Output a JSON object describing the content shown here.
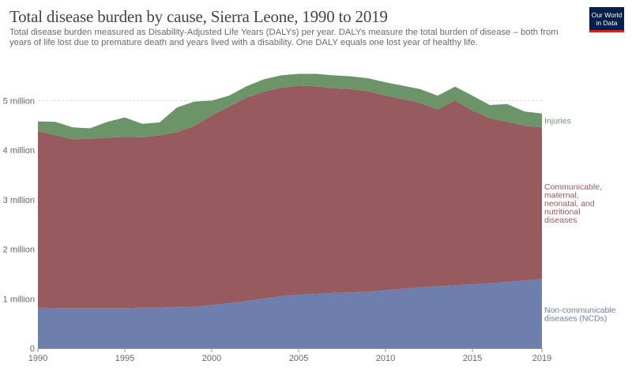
{
  "header": {
    "title": "Total disease burden by cause, Sierra Leone, 1990 to 2019",
    "subtitle": "Total disease burden measured as Disability-Adjusted Life Years (DALYs) per year. DALYs measure the total burden of disease – both from years of life lost due to premature death and years lived with a disability. One DALY equals one lost year of healthy life."
  },
  "logo": {
    "line1": "Our World",
    "line2": "in Data",
    "bg": "#002147",
    "accent": "#ce261e"
  },
  "chart_data": {
    "type": "area",
    "stacked": true,
    "title": "Total disease burden by cause, Sierra Leone, 1990 to 2019",
    "x": [
      1990,
      1991,
      1992,
      1993,
      1994,
      1995,
      1996,
      1997,
      1998,
      1999,
      2000,
      2001,
      2002,
      2003,
      2004,
      2005,
      2006,
      2007,
      2008,
      2009,
      2010,
      2011,
      2012,
      2013,
      2014,
      2015,
      2016,
      2017,
      2018,
      2019
    ],
    "x_ticks": [
      "1990",
      "1995",
      "2000",
      "2005",
      "2010",
      "2015",
      "2019"
    ],
    "y_ticks": [
      "0",
      "1 million",
      "2 million",
      "3 million",
      "4 million",
      "5 million"
    ],
    "ylim": [
      0,
      5500000
    ],
    "grid": true,
    "legend": "right-side inline labels",
    "series": [
      {
        "name": "Non-communicable diseases (NCDs)",
        "label_lines": [
          "Non-communicable",
          "diseases (NCDs)"
        ],
        "color": "#6d7fad",
        "values": [
          820000,
          810000,
          810000,
          810000,
          810000,
          810000,
          820000,
          820000,
          830000,
          840000,
          870000,
          910000,
          950000,
          1000000,
          1050000,
          1080000,
          1100000,
          1120000,
          1130000,
          1140000,
          1170000,
          1200000,
          1230000,
          1250000,
          1270000,
          1290000,
          1310000,
          1340000,
          1370000,
          1400000
        ]
      },
      {
        "name": "Communicable, maternal, neonatal, and nutritional diseases",
        "label_lines": [
          "Communicable,",
          "maternal,",
          "neonatal, and",
          "nutritional",
          "diseases"
        ],
        "color": "#975a5e",
        "values": [
          3570000,
          3490000,
          3410000,
          3420000,
          3440000,
          3460000,
          3440000,
          3480000,
          3530000,
          3650000,
          3830000,
          3970000,
          4110000,
          4180000,
          4210000,
          4220000,
          4190000,
          4130000,
          4100000,
          4050000,
          3930000,
          3830000,
          3720000,
          3570000,
          3730000,
          3510000,
          3330000,
          3230000,
          3120000,
          3060000
        ]
      },
      {
        "name": "Injuries",
        "label_lines": [
          "Injuries"
        ],
        "color": "#6b9568",
        "values": [
          190000,
          270000,
          240000,
          210000,
          320000,
          390000,
          270000,
          260000,
          500000,
          490000,
          300000,
          220000,
          230000,
          250000,
          250000,
          240000,
          250000,
          260000,
          260000,
          260000,
          270000,
          270000,
          280000,
          280000,
          280000,
          300000,
          270000,
          360000,
          290000,
          280000
        ]
      }
    ]
  }
}
